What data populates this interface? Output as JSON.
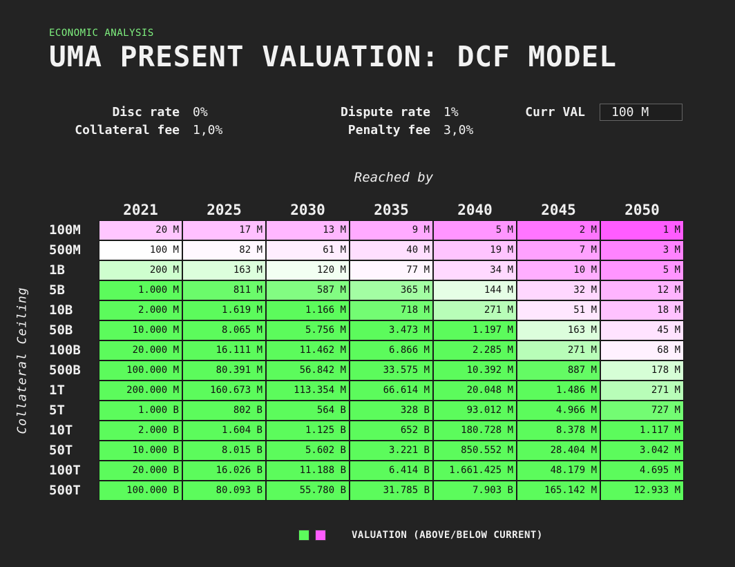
{
  "header": {
    "eyebrow": "ECONOMIC ANALYSIS",
    "title": "UMA PRESENT VALUATION: DCF MODEL"
  },
  "params": {
    "disc_rate_label": "Disc rate",
    "disc_rate_value": "0%",
    "collateral_fee_label": "Collateral fee",
    "collateral_fee_value": "1,0%",
    "dispute_rate_label": "Dispute rate",
    "dispute_rate_value": "1%",
    "penalty_fee_label": "Penalty fee",
    "penalty_fee_value": "3,0%",
    "curr_val_label": "Curr VAL",
    "curr_val_value": "100 M"
  },
  "colors": {
    "above": "#5cfb5c",
    "below": "#ff5cff",
    "neutral": "#ffffff"
  },
  "chart_data": {
    "type": "heatmap",
    "title": "UMA PRESENT VALUATION: DCF MODEL",
    "xlabel": "Reached by",
    "ylabel": "Collateral Ceiling",
    "columns": [
      "2021",
      "2025",
      "2030",
      "2035",
      "2040",
      "2045",
      "2050"
    ],
    "rows": [
      "100M",
      "500M",
      "1B",
      "5B",
      "10B",
      "50B",
      "100B",
      "500B",
      "1T",
      "5T",
      "10T",
      "50T",
      "100T",
      "500T"
    ],
    "current_value_m": 100,
    "cells": [
      [
        "20 M",
        "17 M",
        "13 M",
        "9 M",
        "5 M",
        "2 M",
        "1 M"
      ],
      [
        "100 M",
        "82 M",
        "61 M",
        "40 M",
        "19 M",
        "7 M",
        "3 M"
      ],
      [
        "200 M",
        "163 M",
        "120 M",
        "77 M",
        "34 M",
        "10 M",
        "5 M"
      ],
      [
        "1.000 M",
        "811 M",
        "587 M",
        "365 M",
        "144 M",
        "32 M",
        "12 M"
      ],
      [
        "2.000 M",
        "1.619 M",
        "1.166 M",
        "718 M",
        "271 M",
        "51 M",
        "18 M"
      ],
      [
        "10.000 M",
        "8.065 M",
        "5.756 M",
        "3.473 M",
        "1.197 M",
        "163 M",
        "45 M"
      ],
      [
        "20.000 M",
        "16.111 M",
        "11.462 M",
        "6.866 M",
        "2.285 M",
        "271 M",
        "68 M"
      ],
      [
        "100.000 M",
        "80.391 M",
        "56.842 M",
        "33.575 M",
        "10.392 M",
        "887 M",
        "178 M"
      ],
      [
        "200.000 M",
        "160.673 M",
        "113.354 M",
        "66.614 M",
        "20.048 M",
        "1.486 M",
        "271 M"
      ],
      [
        "1.000 B",
        "802 B",
        "564 B",
        "328 B",
        "93.012 M",
        "4.966 M",
        "727 M"
      ],
      [
        "2.000 B",
        "1.604 B",
        "1.125 B",
        "652 B",
        "180.728 M",
        "8.378 M",
        "1.117 M"
      ],
      [
        "10.000 B",
        "8.015 B",
        "5.602 B",
        "3.221 B",
        "850.552 M",
        "28.404 M",
        "3.042 M"
      ],
      [
        "20.000 B",
        "16.026 B",
        "11.188 B",
        "6.414 B",
        "1.661.425 M",
        "48.179 M",
        "4.695 M"
      ],
      [
        "100.000 B",
        "80.093 B",
        "55.780 B",
        "31.785 B",
        "7.903 B",
        "165.142 M",
        "12.933 M"
      ]
    ],
    "values_m": [
      [
        20,
        17,
        13,
        9,
        5,
        2,
        1
      ],
      [
        100,
        82,
        61,
        40,
        19,
        7,
        3
      ],
      [
        200,
        163,
        120,
        77,
        34,
        10,
        5
      ],
      [
        1000,
        811,
        587,
        365,
        144,
        32,
        12
      ],
      [
        2000,
        1619,
        1166,
        718,
        271,
        51,
        18
      ],
      [
        10000,
        8065,
        5756,
        3473,
        1197,
        163,
        45
      ],
      [
        20000,
        16111,
        11462,
        6866,
        2285,
        271,
        68
      ],
      [
        100000,
        80391,
        56842,
        33575,
        10392,
        887,
        178
      ],
      [
        200000,
        160673,
        113354,
        66614,
        20048,
        1486,
        271
      ],
      [
        1000000,
        802000,
        564000,
        328000,
        93012,
        4966,
        727
      ],
      [
        2000000,
        1604000,
        1125000,
        652000,
        180728,
        8378,
        1117
      ],
      [
        10000000,
        8015000,
        5602000,
        3221000,
        850552,
        28404,
        3042
      ],
      [
        20000000,
        16026000,
        11188000,
        6414000,
        1661425,
        48179,
        4695
      ],
      [
        100000000,
        80093000,
        55780000,
        31785000,
        7903000,
        165142,
        12933
      ]
    ],
    "legend": "VALUATION (ABOVE/BELOW CURRENT)"
  }
}
